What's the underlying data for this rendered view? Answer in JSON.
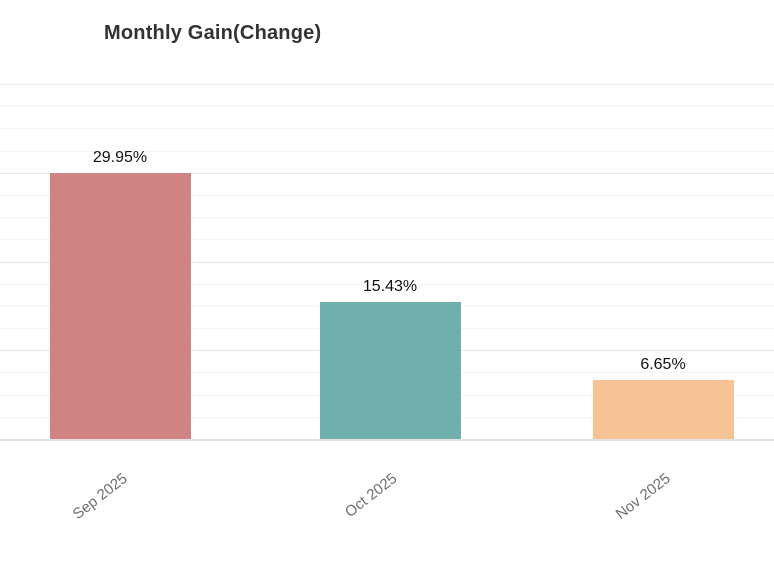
{
  "chart_data": {
    "type": "bar",
    "title": "Monthly Gain(Change)",
    "categories": [
      "Sep 2025",
      "Oct 2025",
      "Nov 2025"
    ],
    "values": [
      29.95,
      15.43,
      6.65
    ],
    "value_labels": [
      "29.95%",
      "15.43%",
      "6.65%"
    ],
    "bar_colors": [
      "#cf8383",
      "#6fb0ac",
      "#f6c296"
    ],
    "xlabel": "",
    "ylabel": "",
    "ylim": [
      0,
      40
    ],
    "y_major_step": 10,
    "y_minor_step": 2.5,
    "y_tick_labels_visible": false,
    "grid": "on",
    "legend": "none",
    "x_label_rotation_deg": -38
  },
  "colors": {
    "background": "#ffffff",
    "title_text": "#333333",
    "value_label_text": "#111111",
    "axis_label_text": "#6e6e72",
    "gridline_major": "#e7e7e7",
    "gridline_minor": "#f4f4f4",
    "axis_line": "#e3e3e3"
  }
}
